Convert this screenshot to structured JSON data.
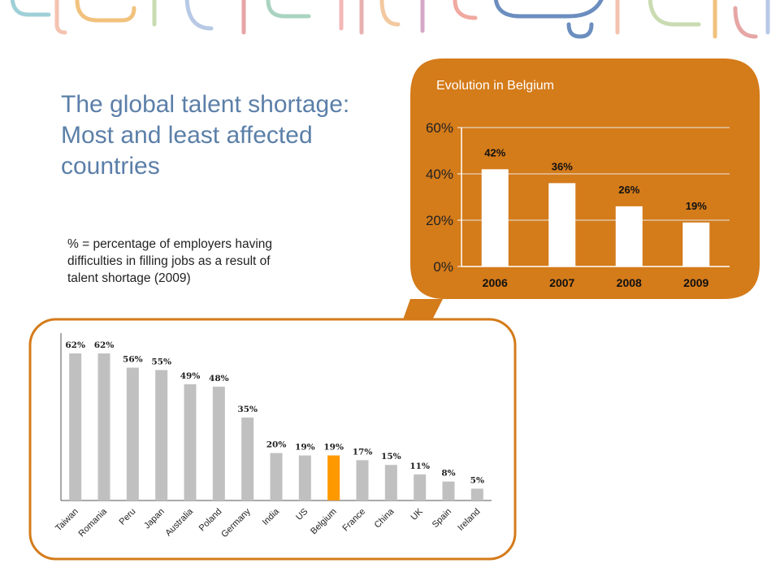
{
  "title_lines": [
    "The global talent shortage:",
    "Most and least affected",
    "countries"
  ],
  "note_lines": [
    "% = percentage of employers having",
    "difficulties in filling jobs as a result of",
    "talent shortage (2009)"
  ],
  "colors": {
    "title": "#5b7fa8",
    "orange": "#d47b1a",
    "bar_grey": "#c0c0c0",
    "bar_highlight": "#ff9900",
    "bar_white": "#ffffff"
  },
  "chart_data": [
    {
      "type": "bar",
      "categories": [
        "Taiwan",
        "Romania",
        "Peru",
        "Japan",
        "Australia",
        "Poland",
        "Germany",
        "India",
        "US",
        "Belgium",
        "France",
        "China",
        "UK",
        "Spain",
        "Ireland"
      ],
      "values": [
        62,
        62,
        56,
        55,
        49,
        48,
        35,
        20,
        19,
        19,
        17,
        15,
        11,
        8,
        5
      ],
      "data_labels": [
        "62%",
        "62%",
        "56%",
        "55%",
        "49%",
        "48%",
        "35%",
        "20%",
        "19%",
        "19%",
        "17%",
        "15%",
        "11%",
        "8%",
        "5%"
      ],
      "highlight": "Belgium",
      "ylim": [
        0,
        70
      ],
      "grid": false
    },
    {
      "type": "bar",
      "title": "Evolution in Belgium",
      "categories": [
        "2006",
        "2007",
        "2008",
        "2009"
      ],
      "values": [
        42,
        36,
        26,
        19
      ],
      "data_labels": [
        "42%",
        "36%",
        "26%",
        "19%"
      ],
      "yticks": [
        "0%",
        "20%",
        "40%",
        "60%"
      ],
      "ylim": [
        0,
        60
      ],
      "grid": true
    }
  ]
}
